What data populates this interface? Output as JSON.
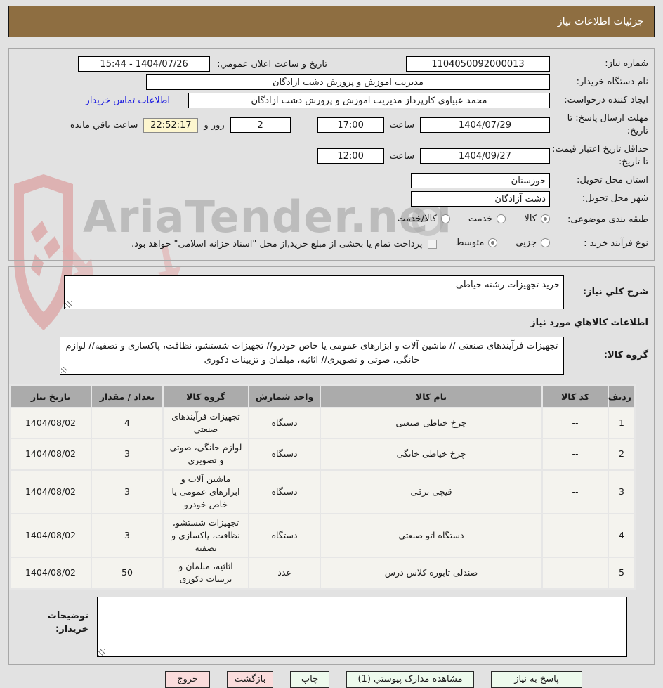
{
  "header": {
    "title": "جزئیات اطلاعات نیاز"
  },
  "watermark": {
    "text": "AriaTender.neT"
  },
  "form": {
    "need_number_label": "شماره نیاز:",
    "need_number": "1104050092000013",
    "announce_label": "تاریخ و ساعت اعلان عمومي:",
    "announce_value": "1404/07/26 - 15:44",
    "buyer_org_label": "نام دستگاه خریدار:",
    "buyer_org": "مدیریت اموزش و پرورش دشت ازادگان",
    "requester_label": "ایجاد کننده درخواست:",
    "requester": "محمد عبیاوی کارپرداز مدیریت اموزش و پرورش دشت ازادگان",
    "contact_link": "اطلاعات تماس خریدار",
    "deadline_label": "مهلت ارسال پاسخ: تا تاریخ:",
    "deadline_date": "1404/07/29",
    "hour_label": "ساعت",
    "deadline_time": "17:00",
    "remain_days": "2",
    "days_and_label": "روز و",
    "remain_time": "22:52:17",
    "remain_suffix": "ساعت باقي مانده",
    "validity_label": "حداقل تاریخ اعتبار قیمت: تا تاریخ:",
    "validity_date": "1404/09/27",
    "validity_time": "12:00",
    "province_label": "استان محل تحویل:",
    "province": "خوزستان",
    "city_label": "شهر محل تحویل:",
    "city": "دشت آزادگان",
    "classification_label": "طبقه بندی موضوعی:",
    "classification_options": [
      {
        "label": "کالا",
        "selected": true
      },
      {
        "label": "خدمت",
        "selected": false
      },
      {
        "label": "کالا/خدمت",
        "selected": false
      }
    ],
    "process_label": "نوع فرآیند خرید :",
    "process_options": [
      {
        "label": "جزیي",
        "selected": false
      },
      {
        "label": "متوسط",
        "selected": true
      }
    ],
    "treasury_note": "پرداخت تمام یا بخشی از مبلغ خرید,از محل \"اسناد خزانه اسلامی\" خواهد بود."
  },
  "need_desc": {
    "label": "شرح کلي نیاز:",
    "value": "خرید تجهیزات رشته خیاطی"
  },
  "goods_section": {
    "title": "اطلاعات کالاهاي مورد نیاز",
    "group_label": "گروه کالا:",
    "group_value": "تجهیزات فرآیندهای صنعتی //  ماشین آلات و ابزارهای عمومی یا خاص خودرو// تجهیزات شستشو، نظافت، پاکسازی و تصفیه// لوازم خانگی، صوتی و تصویری// اثاثیه، مبلمان و تزیینات دکوری"
  },
  "table": {
    "headers": [
      "ردیف",
      "کد کالا",
      "نام کالا",
      "واحد شمارش",
      "گروه کالا",
      "تعداد / مقدار",
      "تاریخ نیاز"
    ],
    "rows": [
      [
        "1",
        "--",
        "چرخ خیاطی صنعتی",
        "دستگاه",
        "تجهیزات فرآیندهای صنعتی",
        "4",
        "1404/08/02"
      ],
      [
        "2",
        "--",
        "چرخ خیاطی خانگی",
        "دستگاه",
        "لوازم خانگی، صوتی و تصویری",
        "3",
        "1404/08/02"
      ],
      [
        "3",
        "--",
        "قیچی برقی",
        "دستگاه",
        "ماشین آلات و ابزارهای عمومی یا خاص خودرو",
        "3",
        "1404/08/02"
      ],
      [
        "4",
        "--",
        "دستگاه اتو صنعتی",
        "دستگاه",
        "تجهیزات شستشو، نظافت، پاکسازی و تصفیه",
        "3",
        "1404/08/02"
      ],
      [
        "5",
        "--",
        "صندلی تابوره کلاس درس",
        "عدد",
        "اثاثیه، مبلمان و تزیینات دکوری",
        "50",
        "1404/08/02"
      ]
    ]
  },
  "buyer_notes": {
    "label": "توضیحات خریدار:"
  },
  "buttons": {
    "respond": "پاسخ به نیاز",
    "attachments": "مشاهده مدارک پیوستي (1)",
    "print": "چاپ",
    "back": "بازگشت",
    "exit": "خروج"
  },
  "colors": {
    "header_bg": "#8e6e41",
    "countdown_bg": "#fdf6cf",
    "green_button_bg": "#edfaed",
    "pink_button_bg": "#fadcdc",
    "link_color": "#2020e0"
  }
}
